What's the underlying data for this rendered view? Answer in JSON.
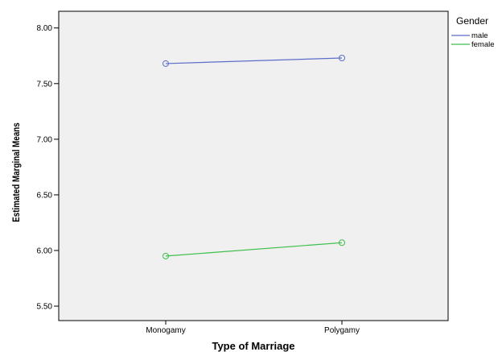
{
  "chart_data": {
    "type": "line",
    "categories": [
      "Monogamy",
      "Polygamy"
    ],
    "series": [
      {
        "name": "male",
        "values": [
          7.68,
          7.73
        ],
        "color": "#5b6ec8"
      },
      {
        "name": "female",
        "values": [
          5.95,
          6.07
        ],
        "color": "#3cbf4a"
      }
    ],
    "xlabel": "Type of Marriage",
    "ylabel": "Estimated Marginal Means",
    "ylim": [
      5.37,
      8.15
    ],
    "yticks": [
      5.5,
      6.0,
      6.5,
      7.0,
      7.5,
      8.0
    ],
    "ytick_labels": [
      "5.50",
      "6.00",
      "6.50",
      "7.00",
      "7.50",
      "8.00"
    ],
    "grid": false,
    "legend": {
      "title": "Gender",
      "position": "top-right"
    },
    "plot_background": "#f0f0f0"
  }
}
